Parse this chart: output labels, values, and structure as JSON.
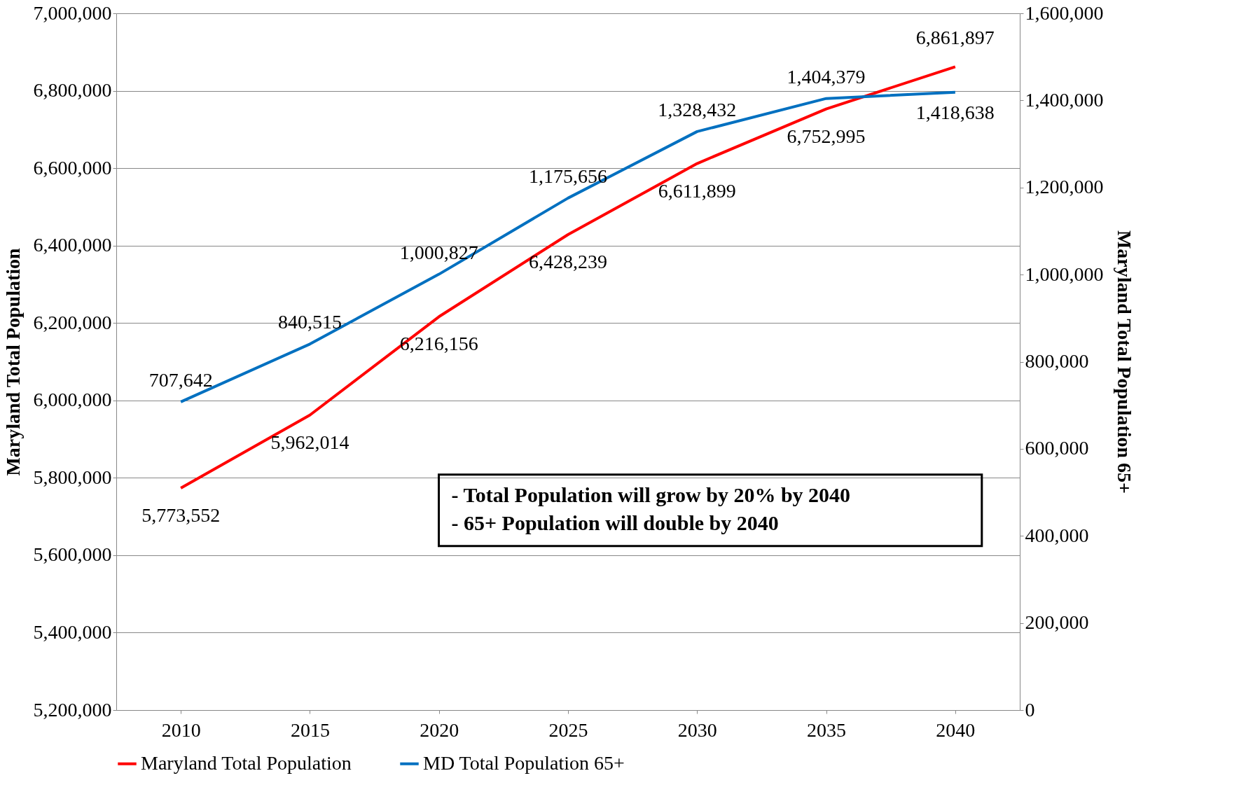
{
  "chart_data": {
    "type": "line",
    "ylabel": "Maryland Total Population",
    "y2label": "Maryland Total Population 65+",
    "categories": [
      "2010",
      "2015",
      "2020",
      "2025",
      "2030",
      "2035",
      "2040"
    ],
    "series": [
      {
        "name": "Maryland Total Population",
        "color": "#ff0000",
        "values": [
          5773552,
          5962014,
          6216156,
          6428239,
          6611899,
          6752995,
          6861897
        ],
        "value_labels": [
          "5,773,552",
          "5,962,014",
          "6,216,156",
          "6,428,239",
          "6,611,899",
          "6,752,995",
          "6,861,897"
        ]
      },
      {
        "name": "MD Total Population 65+",
        "color": "#0070c0",
        "axis": "y2",
        "values": [
          707642,
          840515,
          1000827,
          1175656,
          1328432,
          1404379,
          1418638
        ],
        "value_labels": [
          "707,642",
          "840,515",
          "1,000,827",
          "1,175,656",
          "1,328,432",
          "1,404,379",
          "1,418,638"
        ]
      }
    ],
    "ylim": [
      5200000,
      7000000
    ],
    "yticks": [
      {
        "value": 5200000,
        "label": "5,200,000"
      },
      {
        "value": 5400000,
        "label": "5,400,000"
      },
      {
        "value": 5600000,
        "label": "5,600,000"
      },
      {
        "value": 5800000,
        "label": "5,800,000"
      },
      {
        "value": 6000000,
        "label": "6,000,000"
      },
      {
        "value": 6200000,
        "label": "6,200,000"
      },
      {
        "value": 6400000,
        "label": "6,400,000"
      },
      {
        "value": 6600000,
        "label": "6,600,000"
      },
      {
        "value": 6800000,
        "label": "6,800,000"
      },
      {
        "value": 7000000,
        "label": "7,000,000"
      }
    ],
    "y2lim": [
      0,
      1600000
    ],
    "y2ticks": [
      0,
      {
        "value": 200000,
        "label": "200,000"
      },
      {
        "value": 400000,
        "label": "400,000"
      },
      {
        "value": 600000,
        "label": "600,000"
      },
      {
        "value": 800000,
        "label": "800,000"
      },
      {
        "value": 1000000,
        "label": "1,000,000"
      },
      {
        "value": 1200000,
        "label": "1,200,000"
      },
      {
        "value": 1400000,
        "label": "1,400,000"
      },
      {
        "value": 1600000,
        "label": "1,600,000"
      }
    ],
    "grid": "y",
    "legend": "bottom",
    "marker": "none",
    "line_style": "solid",
    "annotations": [
      "- Total Population will grow by 20% by 2040",
      "- 65+ Population will double by 2040"
    ]
  }
}
